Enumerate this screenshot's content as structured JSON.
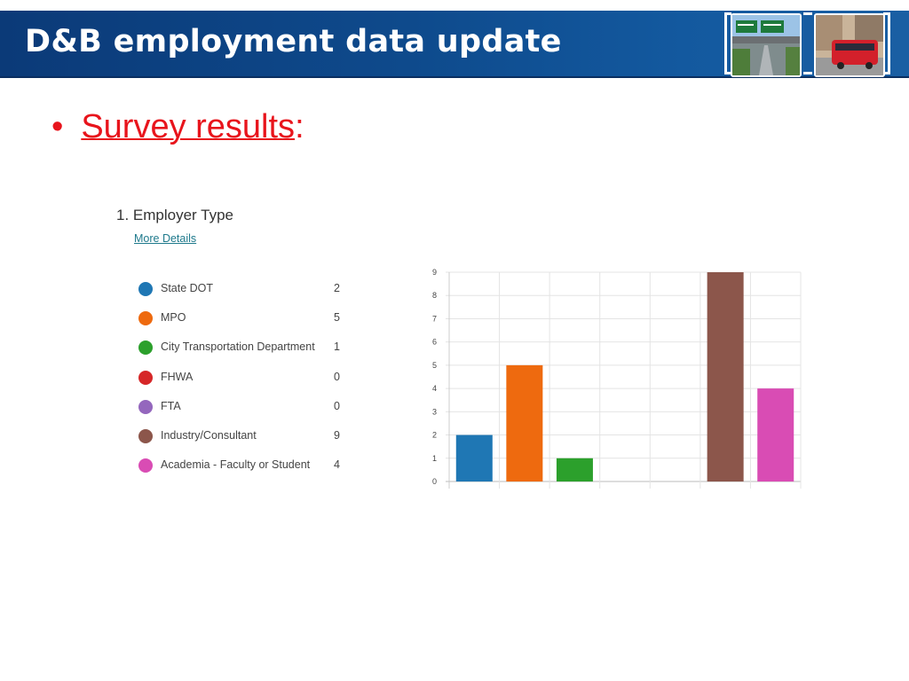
{
  "header": {
    "title": "D&B employment data update"
  },
  "bullet": {
    "symbol": "•",
    "text": "Survey results",
    "suffix": ":"
  },
  "question": {
    "title": "1.  Employer Type",
    "link": "More Details"
  },
  "legend": [
    {
      "label": "State DOT",
      "count": "2",
      "color": "#1f77b4"
    },
    {
      "label": "MPO",
      "count": "5",
      "color": "#ee6a0f"
    },
    {
      "label": "City Transportation Department",
      "count": "1",
      "color": "#2ca02c"
    },
    {
      "label": "FHWA",
      "count": "0",
      "color": "#d62728"
    },
    {
      "label": "FTA",
      "count": "0",
      "color": "#9467bd"
    },
    {
      "label": "Industry/Consultant",
      "count": "9",
      "color": "#8c564b"
    },
    {
      "label": "Academia - Faculty or Student",
      "count": "4",
      "color": "#d94cb4"
    }
  ],
  "chart_data": {
    "type": "bar",
    "categories": [
      "State DOT",
      "MPO",
      "City Transportation Department",
      "FHWA",
      "FTA",
      "Industry/Consultant",
      "Academia - Faculty or Student"
    ],
    "values": [
      2,
      5,
      1,
      0,
      0,
      9,
      4
    ],
    "colors": [
      "#1f77b4",
      "#ee6a0f",
      "#2ca02c",
      "#d62728",
      "#9467bd",
      "#8c564b",
      "#d94cb4"
    ],
    "ylim": [
      0,
      9
    ],
    "yticks": [
      "0",
      "1",
      "2",
      "3",
      "4",
      "5",
      "6",
      "7",
      "8",
      "9"
    ],
    "grid": true,
    "legend": "left"
  }
}
